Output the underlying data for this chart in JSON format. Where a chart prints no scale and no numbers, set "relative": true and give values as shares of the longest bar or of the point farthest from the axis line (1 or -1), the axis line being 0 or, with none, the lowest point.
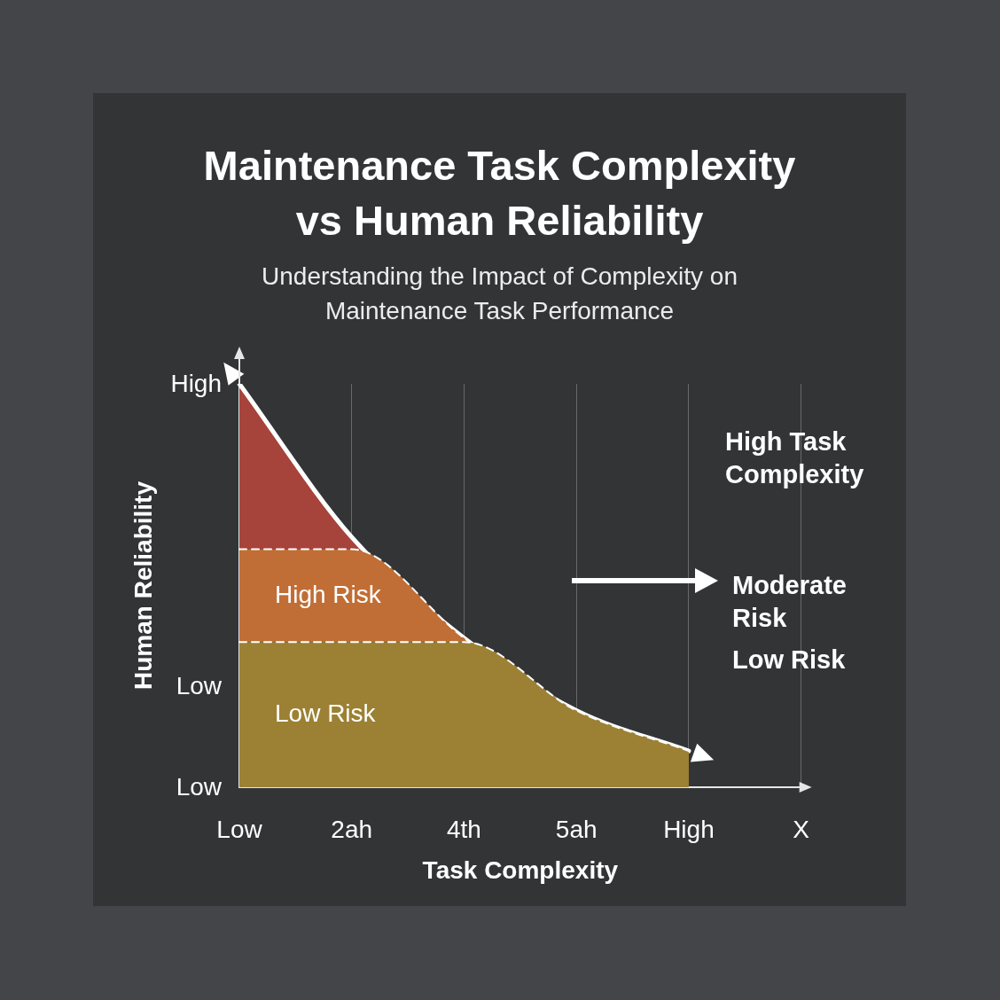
{
  "chart_data": {
    "type": "area",
    "title": "Maintenance Task Complexity vs Human Reliability",
    "subtitle": "Understanding the Impact of Complexity on Maintenance Task Performance",
    "xlabel": "Task Complexity",
    "ylabel": "Human Reliability",
    "relative": true,
    "stacked": true,
    "grid": "x",
    "legend": false,
    "categories": [
      "Low",
      "2ah",
      "4th",
      "5ah",
      "High",
      "X"
    ],
    "series": [
      {
        "name": "Low Risk",
        "color": "#9c8134",
        "line_style": "dashed",
        "values": [
          0.36,
          0.36,
          0.36,
          0.19,
          0.09,
          null
        ]
      },
      {
        "name": "High Risk",
        "color": "#c06e35",
        "line_style": "dashed",
        "values": [
          0.23,
          0.23,
          0.01,
          0,
          0,
          null
        ]
      },
      {
        "color": "#a6433a",
        "values": [
          0.41,
          0.03,
          0,
          0,
          0,
          null
        ]
      }
    ],
    "annotations": [
      "High",
      "Low",
      "Low",
      "High Task Complexity",
      "Moderate Risk",
      "Low Risk"
    ]
  }
}
